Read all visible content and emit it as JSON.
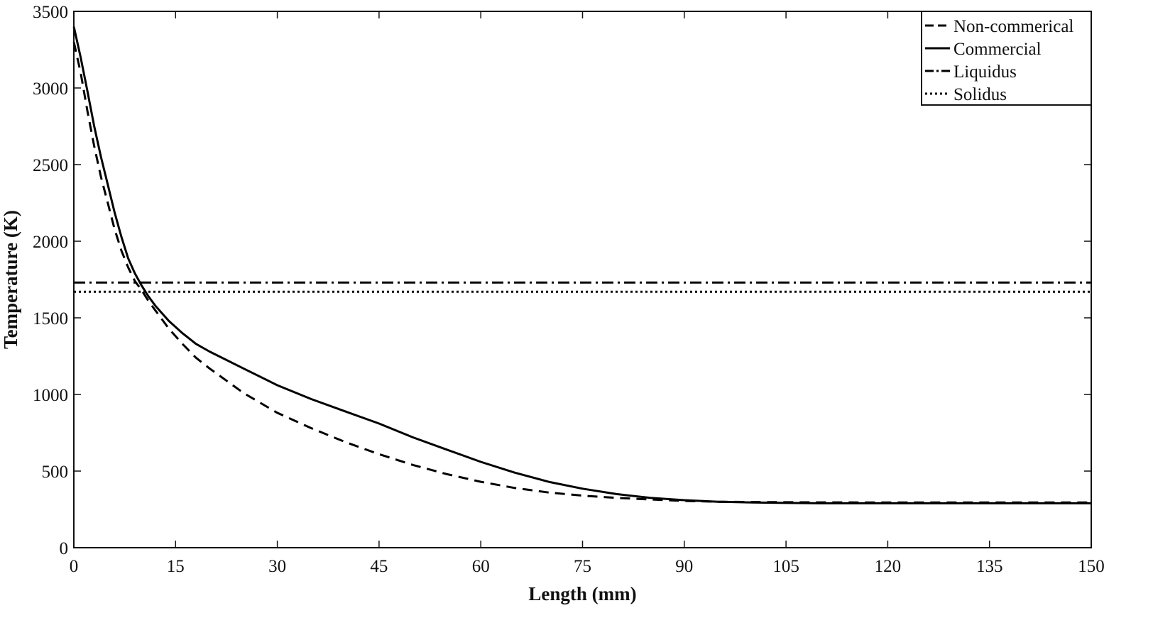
{
  "chart_data": {
    "type": "line",
    "title": "",
    "xlabel": "Length (mm)",
    "ylabel": "Temperature  (K)",
    "xlim": [
      0,
      150
    ],
    "ylim": [
      0,
      3500
    ],
    "xticks": [
      0,
      15,
      30,
      45,
      60,
      75,
      90,
      105,
      120,
      135,
      150
    ],
    "yticks": [
      0,
      500,
      1000,
      1500,
      2000,
      2500,
      3000,
      3500
    ],
    "grid": false,
    "legend_position": "top-right",
    "series": [
      {
        "name": "Non-commerical",
        "style": "dashed",
        "color": "#000000",
        "x": [
          0,
          1,
          2,
          3,
          4,
          5,
          6,
          7,
          8,
          9,
          10,
          11,
          12,
          14,
          16,
          18,
          20,
          25,
          30,
          35,
          40,
          45,
          50,
          55,
          60,
          65,
          70,
          75,
          80,
          85,
          90,
          95,
          100,
          110,
          120,
          130,
          140,
          150
        ],
        "y": [
          3300,
          3100,
          2850,
          2620,
          2420,
          2250,
          2080,
          1940,
          1830,
          1740,
          1680,
          1610,
          1550,
          1430,
          1330,
          1240,
          1170,
          1010,
          880,
          780,
          690,
          610,
          540,
          480,
          430,
          390,
          360,
          340,
          325,
          315,
          305,
          300,
          298,
          296,
          295,
          295,
          295,
          295
        ]
      },
      {
        "name": "Commercial",
        "style": "solid",
        "color": "#000000",
        "x": [
          0,
          1,
          2,
          3,
          4,
          5,
          6,
          7,
          8,
          9,
          10,
          11,
          12,
          14,
          16,
          18,
          20,
          25,
          30,
          35,
          40,
          45,
          50,
          55,
          60,
          65,
          70,
          75,
          80,
          85,
          90,
          95,
          100,
          105,
          110,
          120,
          130,
          140,
          150
        ],
        "y": [
          3400,
          3200,
          2980,
          2750,
          2550,
          2370,
          2190,
          2030,
          1890,
          1790,
          1710,
          1640,
          1580,
          1480,
          1400,
          1330,
          1280,
          1170,
          1060,
          970,
          890,
          810,
          720,
          640,
          560,
          490,
          430,
          385,
          350,
          325,
          310,
          300,
          295,
          292,
          290,
          290,
          290,
          290,
          290
        ]
      },
      {
        "name": "Liquidus",
        "style": "dash-dot",
        "color": "#000000",
        "x": [
          0,
          150
        ],
        "y": [
          1730,
          1730
        ]
      },
      {
        "name": "Solidus",
        "style": "dotted",
        "color": "#000000",
        "x": [
          0,
          150
        ],
        "y": [
          1670,
          1670
        ]
      }
    ]
  }
}
